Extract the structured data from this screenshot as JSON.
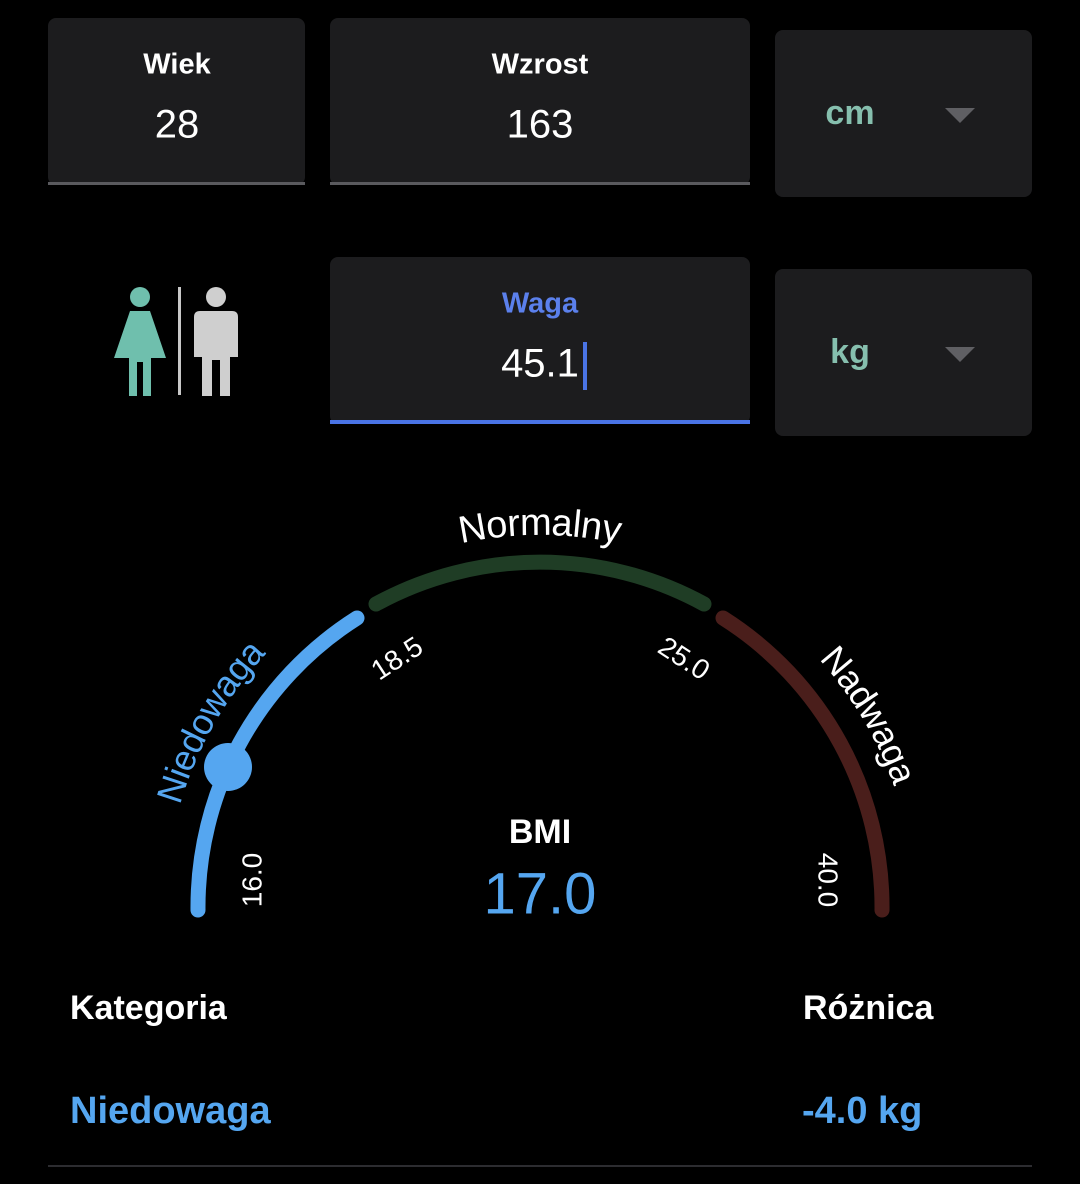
{
  "inputs": {
    "age": {
      "label": "Wiek",
      "value": "28"
    },
    "height": {
      "label": "Wzrost",
      "value": "163",
      "unit": "cm"
    },
    "weight": {
      "label": "Waga",
      "value": "45.1",
      "unit": "kg"
    }
  },
  "gauge": {
    "ranges": [
      "Niedowaga",
      "Normalny",
      "Nadwaga"
    ],
    "ticks": [
      "16.0",
      "18.5",
      "25.0",
      "40.0"
    ],
    "label": "BMI",
    "value": "17.0"
  },
  "result": {
    "category_label": "Kategoria",
    "category": "Niedowaga",
    "difference_label": "Różnica",
    "difference": "-4.0 kg"
  }
}
